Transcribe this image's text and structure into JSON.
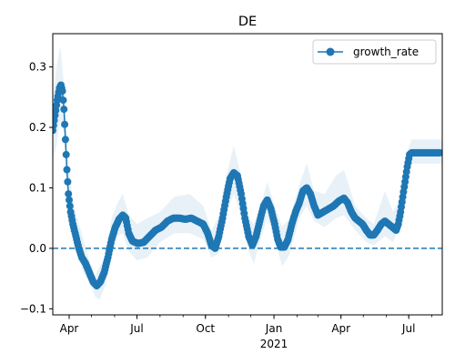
{
  "chart_data": {
    "type": "line",
    "title": "DE",
    "legend": {
      "label": "growth_rate",
      "placement": "top-right"
    },
    "colors": {
      "series": "#1f77b4",
      "band": "#1f77b4",
      "axis": "#000000",
      "zero_line": "#1f77b4"
    },
    "x_axis": {
      "start_date": "2020-03-10",
      "end_date": "2021-08-15",
      "ticks": [
        {
          "date": "2020-04-01",
          "label": "Apr",
          "sublabel": ""
        },
        {
          "date": "2020-07-01",
          "label": "Jul",
          "sublabel": ""
        },
        {
          "date": "2020-10-01",
          "label": "Oct",
          "sublabel": ""
        },
        {
          "date": "2021-01-01",
          "label": "Jan",
          "sublabel": "2021"
        },
        {
          "date": "2021-04-01",
          "label": "Apr",
          "sublabel": ""
        },
        {
          "date": "2021-07-01",
          "label": "Jul",
          "sublabel": ""
        }
      ]
    },
    "y_axis": {
      "ylim": [
        -0.11,
        0.355
      ],
      "ticks": [
        -0.1,
        0.0,
        0.1,
        0.2,
        0.3
      ],
      "tick_labels": [
        "−0.1",
        "0.0",
        "0.1",
        "0.2",
        "0.3"
      ]
    },
    "reference_line": {
      "y": 0.0,
      "style": "dashed"
    },
    "series": [
      {
        "name": "growth_rate",
        "marker": "circle",
        "points": [
          [
            "2020-03-10",
            0.195
          ],
          [
            "2020-03-13",
            0.22
          ],
          [
            "2020-03-16",
            0.245
          ],
          [
            "2020-03-19",
            0.265
          ],
          [
            "2020-03-21",
            0.27
          ],
          [
            "2020-03-23",
            0.26
          ],
          [
            "2020-03-25",
            0.23
          ],
          [
            "2020-03-27",
            0.18
          ],
          [
            "2020-03-29",
            0.13
          ],
          [
            "2020-03-31",
            0.09
          ],
          [
            "2020-04-03",
            0.06
          ],
          [
            "2020-04-06",
            0.04
          ],
          [
            "2020-04-10",
            0.02
          ],
          [
            "2020-04-14",
            0.0
          ],
          [
            "2020-04-18",
            -0.015
          ],
          [
            "2020-04-23",
            -0.025
          ],
          [
            "2020-04-28",
            -0.04
          ],
          [
            "2020-05-03",
            -0.055
          ],
          [
            "2020-05-08",
            -0.062
          ],
          [
            "2020-05-13",
            -0.055
          ],
          [
            "2020-05-18",
            -0.04
          ],
          [
            "2020-05-23",
            -0.015
          ],
          [
            "2020-05-28",
            0.015
          ],
          [
            "2020-06-02",
            0.035
          ],
          [
            "2020-06-07",
            0.048
          ],
          [
            "2020-06-12",
            0.055
          ],
          [
            "2020-06-16",
            0.05
          ],
          [
            "2020-06-20",
            0.025
          ],
          [
            "2020-06-25",
            0.012
          ],
          [
            "2020-07-02",
            0.008
          ],
          [
            "2020-07-10",
            0.01
          ],
          [
            "2020-07-18",
            0.02
          ],
          [
            "2020-07-26",
            0.03
          ],
          [
            "2020-08-03",
            0.035
          ],
          [
            "2020-08-11",
            0.045
          ],
          [
            "2020-08-19",
            0.05
          ],
          [
            "2020-08-27",
            0.05
          ],
          [
            "2020-09-04",
            0.048
          ],
          [
            "2020-09-12",
            0.05
          ],
          [
            "2020-09-20",
            0.045
          ],
          [
            "2020-09-28",
            0.04
          ],
          [
            "2020-10-04",
            0.025
          ],
          [
            "2020-10-09",
            0.005
          ],
          [
            "2020-10-14",
            0.0
          ],
          [
            "2020-10-19",
            0.02
          ],
          [
            "2020-10-24",
            0.05
          ],
          [
            "2020-10-29",
            0.085
          ],
          [
            "2020-11-03",
            0.115
          ],
          [
            "2020-11-08",
            0.125
          ],
          [
            "2020-11-13",
            0.12
          ],
          [
            "2020-11-18",
            0.09
          ],
          [
            "2020-11-23",
            0.05
          ],
          [
            "2020-11-28",
            0.02
          ],
          [
            "2020-12-03",
            0.005
          ],
          [
            "2020-12-08",
            0.02
          ],
          [
            "2020-12-13",
            0.045
          ],
          [
            "2020-12-18",
            0.07
          ],
          [
            "2020-12-23",
            0.08
          ],
          [
            "2020-12-28",
            0.065
          ],
          [
            "2021-01-02",
            0.04
          ],
          [
            "2021-01-06",
            0.015
          ],
          [
            "2021-01-10",
            0.002
          ],
          [
            "2021-01-15",
            0.002
          ],
          [
            "2021-01-20",
            0.015
          ],
          [
            "2021-01-25",
            0.04
          ],
          [
            "2021-01-30",
            0.06
          ],
          [
            "2021-02-04",
            0.075
          ],
          [
            "2021-02-09",
            0.095
          ],
          [
            "2021-02-14",
            0.1
          ],
          [
            "2021-02-19",
            0.09
          ],
          [
            "2021-02-24",
            0.07
          ],
          [
            "2021-03-01",
            0.055
          ],
          [
            "2021-03-08",
            0.06
          ],
          [
            "2021-03-15",
            0.065
          ],
          [
            "2021-03-22",
            0.07
          ],
          [
            "2021-03-29",
            0.078
          ],
          [
            "2021-04-05",
            0.083
          ],
          [
            "2021-04-10",
            0.075
          ],
          [
            "2021-04-15",
            0.06
          ],
          [
            "2021-04-20",
            0.05
          ],
          [
            "2021-04-25",
            0.045
          ],
          [
            "2021-04-30",
            0.04
          ],
          [
            "2021-05-05",
            0.03
          ],
          [
            "2021-05-10",
            0.022
          ],
          [
            "2021-05-15",
            0.022
          ],
          [
            "2021-05-20",
            0.03
          ],
          [
            "2021-05-25",
            0.04
          ],
          [
            "2021-05-30",
            0.045
          ],
          [
            "2021-06-04",
            0.04
          ],
          [
            "2021-06-09",
            0.035
          ],
          [
            "2021-06-14",
            0.03
          ],
          [
            "2021-06-17",
            0.04
          ],
          [
            "2021-06-20",
            0.06
          ],
          [
            "2021-06-23",
            0.085
          ],
          [
            "2021-06-26",
            0.11
          ],
          [
            "2021-06-29",
            0.135
          ],
          [
            "2021-07-02",
            0.155
          ],
          [
            "2021-07-05",
            0.158
          ],
          [
            "2021-07-12",
            0.158
          ],
          [
            "2021-07-20",
            0.158
          ],
          [
            "2021-07-28",
            0.158
          ],
          [
            "2021-08-05",
            0.158
          ],
          [
            "2021-08-12",
            0.158
          ]
        ],
        "band": [
          [
            "2020-03-10",
            0.145,
            0.245
          ],
          [
            "2020-03-15",
            0.17,
            0.3
          ],
          [
            "2020-03-20",
            0.21,
            0.335
          ],
          [
            "2020-03-25",
            0.19,
            0.27
          ],
          [
            "2020-03-30",
            0.08,
            0.16
          ],
          [
            "2020-04-05",
            0.03,
            0.085
          ],
          [
            "2020-04-12",
            -0.01,
            0.05
          ],
          [
            "2020-04-20",
            -0.04,
            0.015
          ],
          [
            "2020-04-28",
            -0.055,
            -0.02
          ],
          [
            "2020-05-06",
            -0.08,
            -0.045
          ],
          [
            "2020-05-12",
            -0.085,
            -0.03
          ],
          [
            "2020-05-20",
            -0.06,
            -0.015
          ],
          [
            "2020-05-28",
            -0.015,
            0.05
          ],
          [
            "2020-06-05",
            0.02,
            0.075
          ],
          [
            "2020-06-12",
            0.025,
            0.09
          ],
          [
            "2020-06-20",
            -0.005,
            0.055
          ],
          [
            "2020-07-01",
            -0.02,
            0.04
          ],
          [
            "2020-07-15",
            -0.015,
            0.05
          ],
          [
            "2020-08-01",
            0.01,
            0.06
          ],
          [
            "2020-08-20",
            0.025,
            0.085
          ],
          [
            "2020-09-10",
            0.025,
            0.09
          ],
          [
            "2020-09-28",
            0.015,
            0.07
          ],
          [
            "2020-10-09",
            -0.015,
            0.03
          ],
          [
            "2020-10-18",
            -0.01,
            0.05
          ],
          [
            "2020-10-28",
            0.055,
            0.115
          ],
          [
            "2020-11-08",
            0.09,
            0.17
          ],
          [
            "2020-11-18",
            0.055,
            0.12
          ],
          [
            "2020-11-28",
            -0.005,
            0.05
          ],
          [
            "2020-12-05",
            -0.025,
            0.04
          ],
          [
            "2020-12-15",
            0.02,
            0.075
          ],
          [
            "2020-12-23",
            0.05,
            0.11
          ],
          [
            "2021-01-02",
            0.015,
            0.07
          ],
          [
            "2021-01-12",
            -0.03,
            0.035
          ],
          [
            "2021-01-22",
            -0.01,
            0.05
          ],
          [
            "2021-02-04",
            0.05,
            0.105
          ],
          [
            "2021-02-14",
            0.07,
            0.14
          ],
          [
            "2021-02-24",
            0.045,
            0.095
          ],
          [
            "2021-03-10",
            0.035,
            0.09
          ],
          [
            "2021-03-25",
            0.05,
            0.12
          ],
          [
            "2021-04-05",
            0.055,
            0.13
          ],
          [
            "2021-04-20",
            0.03,
            0.07
          ],
          [
            "2021-05-05",
            0.01,
            0.05
          ],
          [
            "2021-05-15",
            0.005,
            0.04
          ],
          [
            "2021-05-30",
            0.02,
            0.095
          ],
          [
            "2021-06-10",
            0.01,
            0.06
          ],
          [
            "2021-06-20",
            0.04,
            0.085
          ],
          [
            "2021-06-29",
            0.11,
            0.16
          ],
          [
            "2021-07-05",
            0.14,
            0.18
          ],
          [
            "2021-08-15",
            0.14,
            0.18
          ]
        ]
      }
    ]
  }
}
